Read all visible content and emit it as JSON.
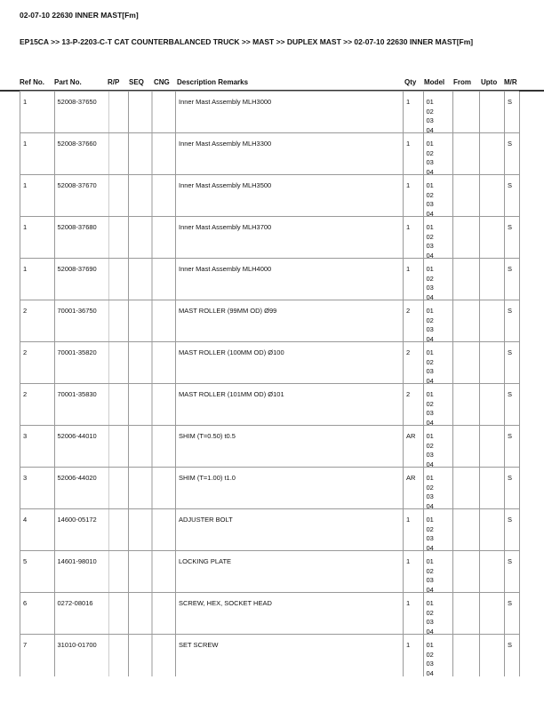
{
  "title": "02-07-10 22630 INNER MAST[Fm]",
  "breadcrumb": "EP15CA >> 13-P-2203-C-T CAT COUNTERBALANCED TRUCK >> MAST >> DUPLEX MAST >> 02-07-10 22630 INNER MAST[Fm]",
  "columns": [
    "Ref No.",
    "Part No.",
    "R/P",
    "SEQ",
    "CNG",
    "Description Remarks",
    "Qty",
    "Model",
    "From",
    "Upto",
    "M/R"
  ],
  "rows": [
    {
      "ref": "1",
      "part": "52008-37650",
      "rp": "",
      "seq": "",
      "cng": "",
      "desc": "Inner Mast Assembly MLH3000",
      "qty": "1",
      "model": [
        "01",
        "02",
        "03",
        "04"
      ],
      "from": "",
      "upto": "",
      "mr": "S"
    },
    {
      "ref": "1",
      "part": "52008-37660",
      "rp": "",
      "seq": "",
      "cng": "",
      "desc": "Inner Mast Assembly MLH3300",
      "qty": "1",
      "model": [
        "01",
        "02",
        "03",
        "04"
      ],
      "from": "",
      "upto": "",
      "mr": "S"
    },
    {
      "ref": "1",
      "part": "52008-37670",
      "rp": "",
      "seq": "",
      "cng": "",
      "desc": "Inner Mast Assembly MLH3500",
      "qty": "1",
      "model": [
        "01",
        "02",
        "03",
        "04"
      ],
      "from": "",
      "upto": "",
      "mr": "S"
    },
    {
      "ref": "1",
      "part": "52008-37680",
      "rp": "",
      "seq": "",
      "cng": "",
      "desc": "Inner Mast Assembly MLH3700",
      "qty": "1",
      "model": [
        "01",
        "02",
        "03",
        "04"
      ],
      "from": "",
      "upto": "",
      "mr": "S"
    },
    {
      "ref": "1",
      "part": "52008-37690",
      "rp": "",
      "seq": "",
      "cng": "",
      "desc": "Inner Mast Assembly MLH4000",
      "qty": "1",
      "model": [
        "01",
        "02",
        "03",
        "04"
      ],
      "from": "",
      "upto": "",
      "mr": "S"
    },
    {
      "ref": "2",
      "part": "70001-36750",
      "rp": "",
      "seq": "",
      "cng": "",
      "desc": "MAST ROLLER (99MM OD) Ø99",
      "qty": "2",
      "model": [
        "01",
        "02",
        "03",
        "04"
      ],
      "from": "",
      "upto": "",
      "mr": "S"
    },
    {
      "ref": "2",
      "part": "70001-35820",
      "rp": "",
      "seq": "",
      "cng": "",
      "desc": "MAST ROLLER (100MM OD) Ø100",
      "qty": "2",
      "model": [
        "01",
        "02",
        "03",
        "04"
      ],
      "from": "",
      "upto": "",
      "mr": "S"
    },
    {
      "ref": "2",
      "part": "70001-35830",
      "rp": "",
      "seq": "",
      "cng": "",
      "desc": "MAST ROLLER (101MM OD) Ø101",
      "qty": "2",
      "model": [
        "01",
        "02",
        "03",
        "04"
      ],
      "from": "",
      "upto": "",
      "mr": "S"
    },
    {
      "ref": "3",
      "part": "52006-44010",
      "rp": "",
      "seq": "",
      "cng": "",
      "desc": "SHIM (T=0.50) t0.5",
      "qty": "AR",
      "model": [
        "01",
        "02",
        "03",
        "04"
      ],
      "from": "",
      "upto": "",
      "mr": "S"
    },
    {
      "ref": "3",
      "part": "52006-44020",
      "rp": "",
      "seq": "",
      "cng": "",
      "desc": "SHIM (T=1.00) t1.0",
      "qty": "AR",
      "model": [
        "01",
        "02",
        "03",
        "04"
      ],
      "from": "",
      "upto": "",
      "mr": "S"
    },
    {
      "ref": "4",
      "part": "14600-05172",
      "rp": "",
      "seq": "",
      "cng": "",
      "desc": "ADJUSTER BOLT",
      "qty": "1",
      "model": [
        "01",
        "02",
        "03",
        "04"
      ],
      "from": "",
      "upto": "",
      "mr": "S"
    },
    {
      "ref": "5",
      "part": "14601-98010",
      "rp": "",
      "seq": "",
      "cng": "",
      "desc": "LOCKING PLATE",
      "qty": "1",
      "model": [
        "01",
        "02",
        "03",
        "04"
      ],
      "from": "",
      "upto": "",
      "mr": "S"
    },
    {
      "ref": "6",
      "part": "0272-08016",
      "rp": "",
      "seq": "",
      "cng": "",
      "desc": "SCREW, HEX, SOCKET HEAD",
      "qty": "1",
      "model": [
        "01",
        "02",
        "03",
        "04"
      ],
      "from": "",
      "upto": "",
      "mr": "S"
    },
    {
      "ref": "7",
      "part": "31010-01700",
      "rp": "",
      "seq": "",
      "cng": "",
      "desc": "SET SCREW",
      "qty": "1",
      "model": [
        "01",
        "02",
        "03",
        "04"
      ],
      "from": "",
      "upto": "",
      "mr": "S"
    }
  ]
}
